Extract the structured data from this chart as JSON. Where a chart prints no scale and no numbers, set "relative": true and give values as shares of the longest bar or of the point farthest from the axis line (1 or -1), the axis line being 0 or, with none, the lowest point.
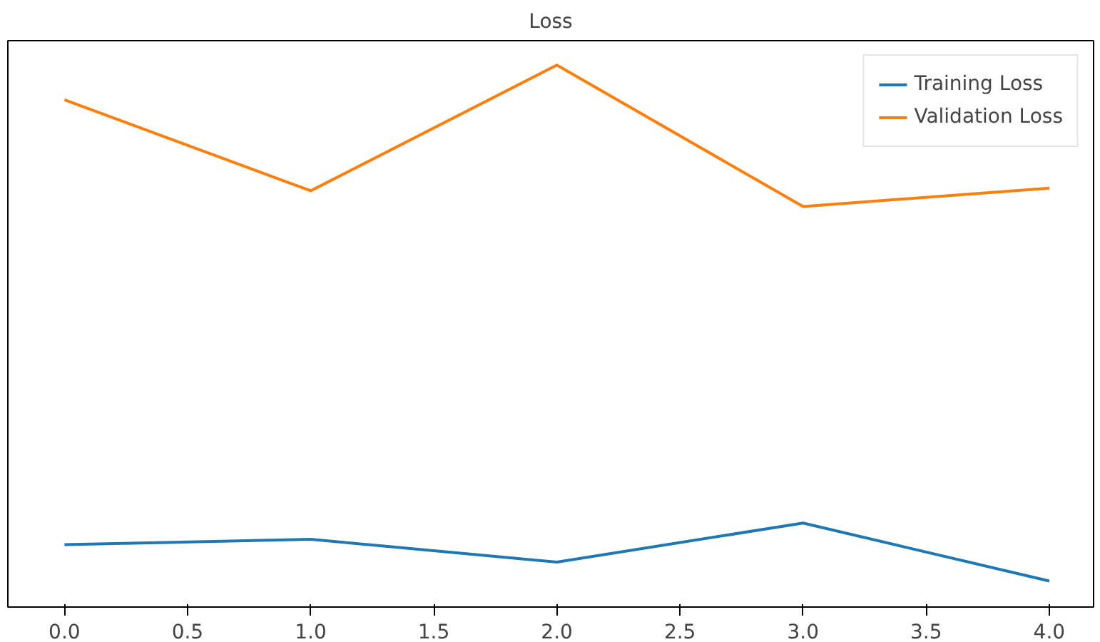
{
  "chart_data": {
    "type": "line",
    "title": "Loss",
    "relative": true,
    "x": [
      0,
      1,
      2,
      3,
      4
    ],
    "xlim": [
      -0.23,
      4.18
    ],
    "xticks": [
      {
        "value": 0,
        "label": "0.0"
      },
      {
        "value": 0.5,
        "label": "0.5"
      },
      {
        "value": 1,
        "label": "1.0"
      },
      {
        "value": 1.5,
        "label": "1.5"
      },
      {
        "value": 2,
        "label": "2.0"
      },
      {
        "value": 2.5,
        "label": "2.5"
      },
      {
        "value": 3,
        "label": "3.0"
      },
      {
        "value": 3.5,
        "label": "3.5"
      },
      {
        "value": 4,
        "label": "4.0"
      }
    ],
    "series": [
      {
        "name": "Training Loss",
        "color": "#1f77b4",
        "values": [
          0.115,
          0.125,
          0.083,
          0.155,
          0.048
        ]
      },
      {
        "name": "Validation Loss",
        "color": "#ff7f0e",
        "values": [
          0.936,
          0.768,
          1.0,
          0.739,
          0.773
        ]
      }
    ],
    "legend": "top right",
    "grid": false,
    "marker": "none",
    "line_style": "solid"
  }
}
